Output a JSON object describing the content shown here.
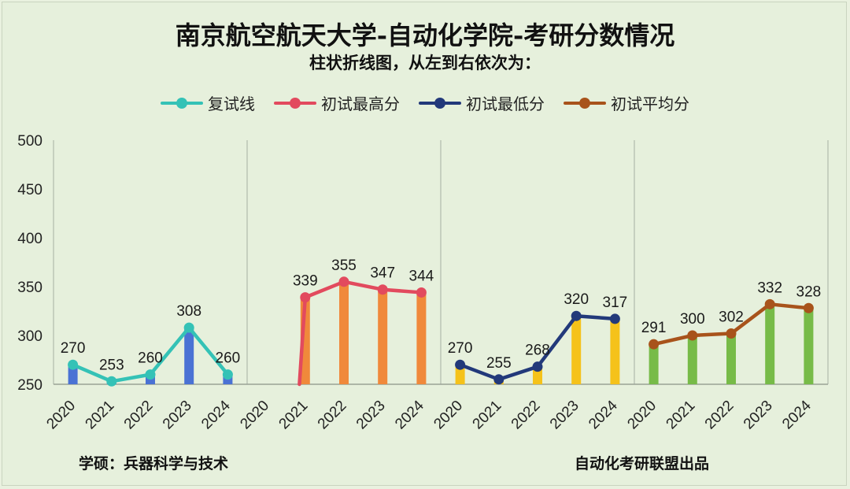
{
  "title": "南京航空航天大学-自动化学院-考研分数情况",
  "subtitle": "柱状折线图，从左到右依次为：",
  "footer_left": "学硕：兵器科学与技术",
  "footer_right": "自动化考研联盟出品",
  "chart_data": {
    "type": "bar",
    "ylim": [
      250,
      500
    ],
    "yticks": [
      "250",
      "300",
      "350",
      "400",
      "450",
      "500"
    ],
    "legend_position": "top",
    "grid": false,
    "groups": [
      {
        "name": "复试线",
        "categories": [
          "2020",
          "2021",
          "2022",
          "2023",
          "2024"
        ],
        "values": [
          270,
          253,
          260,
          308,
          260
        ],
        "line_color": "#34c2b6",
        "bar_color": "#4a72d4"
      },
      {
        "name": "初试最高分",
        "categories": [
          "2020",
          "2021",
          "2022",
          "2023",
          "2024"
        ],
        "values": [
          null,
          339,
          355,
          347,
          344
        ],
        "line_start_from": 205,
        "line_color": "#e24a5e",
        "bar_color": "#f0893b"
      },
      {
        "name": "初试最低分",
        "categories": [
          "2020",
          "2021",
          "2022",
          "2023",
          "2024"
        ],
        "values": [
          270,
          255,
          268,
          320,
          317
        ],
        "line_color": "#22397a",
        "bar_color": "#f5c21a"
      },
      {
        "name": "初试平均分",
        "categories": [
          "2020",
          "2021",
          "2022",
          "2023",
          "2024"
        ],
        "values": [
          291,
          300,
          302,
          332,
          328
        ],
        "line_color": "#a8531b",
        "bar_color": "#77bb48"
      }
    ]
  }
}
